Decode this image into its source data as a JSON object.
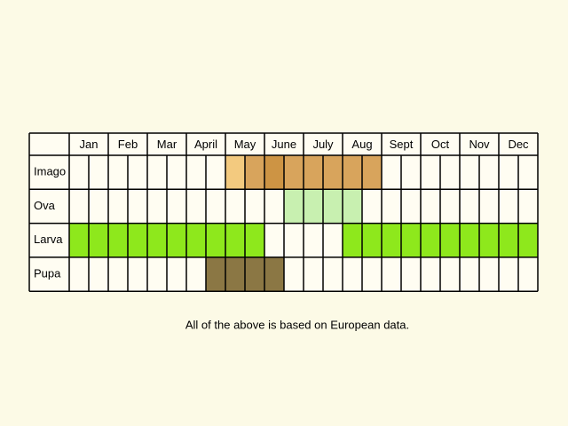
{
  "table": {
    "months": [
      "Jan",
      "Feb",
      "Mar",
      "April",
      "May",
      "June",
      "July",
      "Aug",
      "Sept",
      "Oct",
      "Nov",
      "Dec"
    ],
    "rows": [
      {
        "label": "Imago",
        "cells": [
          null,
          null,
          null,
          null,
          null,
          null,
          null,
          null,
          "#f3ca7f",
          "#d8a45c",
          "#cd9444",
          "#d8a45c",
          "#d8a45c",
          "#d8a45c",
          "#d8a45c",
          "#d8a45c",
          null,
          null,
          null,
          null,
          null,
          null,
          null,
          null
        ]
      },
      {
        "label": "Ova",
        "cells": [
          null,
          null,
          null,
          null,
          null,
          null,
          null,
          null,
          null,
          null,
          null,
          "#c8f0b0",
          "#c8f0b0",
          "#c8f0b0",
          "#c8f0b0",
          null,
          null,
          null,
          null,
          null,
          null,
          null,
          null,
          null
        ]
      },
      {
        "label": "Larva",
        "cells": [
          "#8ee81c",
          "#8ee81c",
          "#8ee81c",
          "#8ee81c",
          "#8ee81c",
          "#8ee81c",
          "#8ee81c",
          "#8ee81c",
          "#8ee81c",
          "#8ee81c",
          null,
          null,
          null,
          null,
          "#8ee81c",
          "#8ee81c",
          "#8ee81c",
          "#8ee81c",
          "#8ee81c",
          "#8ee81c",
          "#8ee81c",
          "#8ee81c",
          "#8ee81c",
          "#8ee81c"
        ]
      },
      {
        "label": "Pupa",
        "cells": [
          null,
          null,
          null,
          null,
          null,
          null,
          null,
          "#8b7744",
          "#8b7744",
          "#8b7744",
          "#8b7744",
          null,
          null,
          null,
          null,
          null,
          null,
          null,
          null,
          null,
          null,
          null,
          null,
          null
        ]
      }
    ]
  },
  "note": "All of the above is based on European data."
}
